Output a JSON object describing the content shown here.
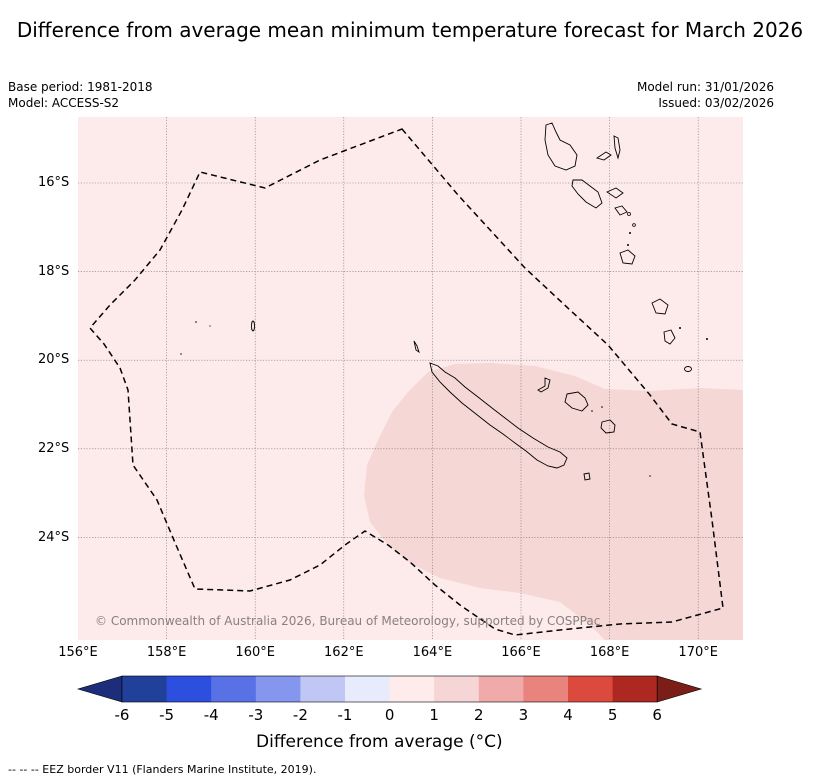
{
  "title": "Difference from average mean minimum temperature forecast for March 2026",
  "base_period": "Base period: 1981-2018",
  "model": "Model: ACCESS-S2",
  "model_run": "Model run: 31/01/2026",
  "issued": "Issued: 03/02/2026",
  "copyright": "© Commonwealth of Australia 2026, Bureau of Meteorology, supported by COSPPac",
  "lat_labels": [
    "16°S",
    "18°S",
    "20°S",
    "22°S",
    "24°S"
  ],
  "lon_labels": [
    "156°E",
    "158°E",
    "160°E",
    "162°E",
    "164°E",
    "166°E",
    "168°E",
    "170°E"
  ],
  "colorbar": {
    "title": "Difference from average (°C)",
    "ticks": [
      "-6",
      "-5",
      "-4",
      "-3",
      "-2",
      "-1",
      "0",
      "1",
      "2",
      "3",
      "4",
      "5",
      "6"
    ],
    "colors": [
      "#21409a",
      "#2d4fe0",
      "#5872e6",
      "#8596ee",
      "#c0c7f5",
      "#e8ebfb",
      "#fdeceb",
      "#f5d5d5",
      "#f0aaaa",
      "#e8837d",
      "#dc4a3d",
      "#ac2821"
    ],
    "under_color": "#1c2e7a",
    "over_color": "#7a1e17"
  },
  "legend_note": "--  --  -- EEZ border V11 (Flanders Marine Institute, 2019).",
  "map": {
    "background_color": "#fcebea",
    "anomaly_region_color": "#f5d7d6",
    "region": "New Caledonia"
  }
}
